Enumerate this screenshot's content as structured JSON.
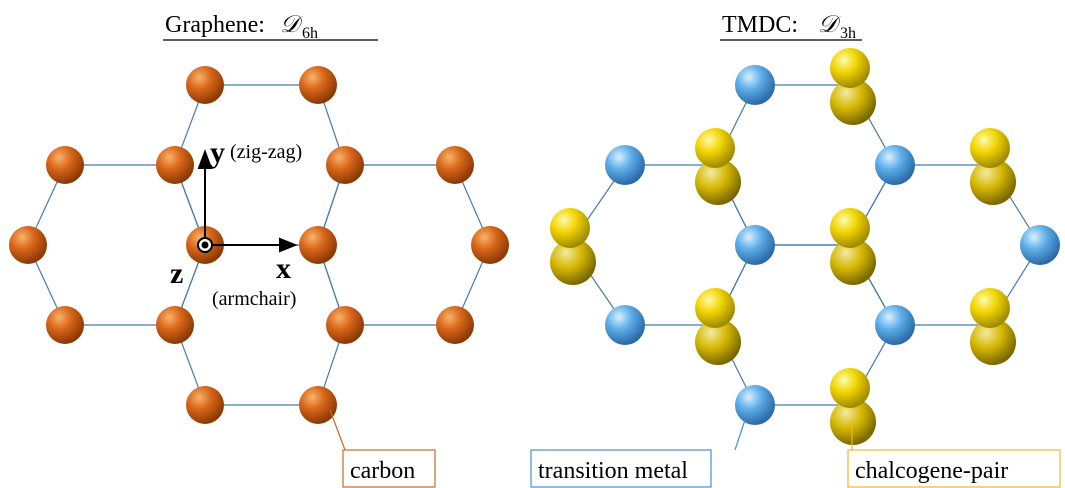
{
  "left": {
    "title": "Graphene: ",
    "symbol": "𝒟",
    "subscript": "6h",
    "axes": {
      "y": "y",
      "y_note": "(zig-zag)",
      "x": "x",
      "x_note": "(armchair)",
      "z": "z"
    },
    "legend": "carbon"
  },
  "right": {
    "title": "TMDC: ",
    "symbol": "𝒟",
    "subscript": "3h",
    "legend": [
      "transition metal",
      "chalcogene-pair"
    ]
  }
}
